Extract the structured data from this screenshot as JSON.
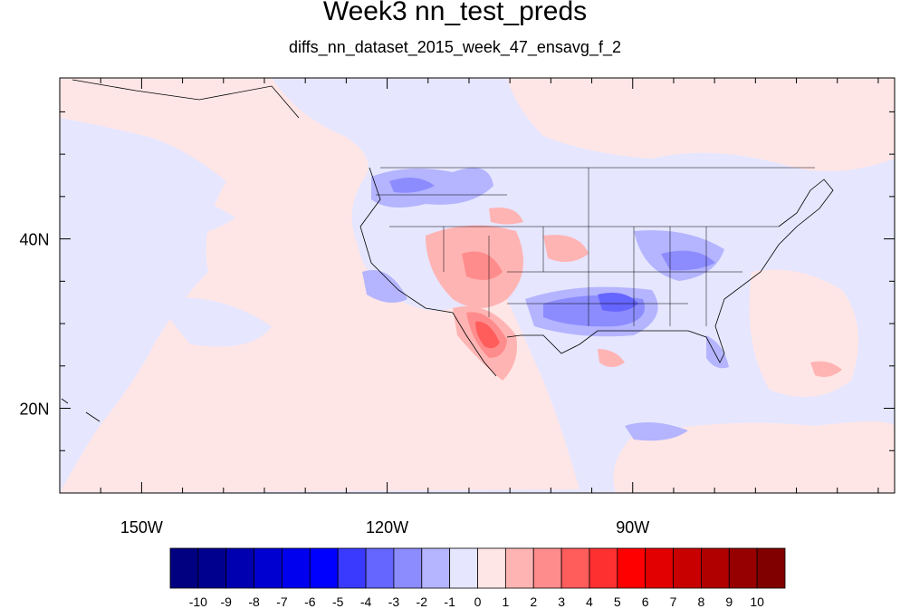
{
  "title": "Week3 nn_test_preds",
  "subtitle": "diffs_nn_dataset_2015_week_47_ensavg_f_2",
  "chart_data": {
    "type": "heatmap",
    "title": "Week3 nn_test_preds",
    "subtitle": "diffs_nn_dataset_2015_week_47_ensavg_f_2",
    "projection": "cylindrical equidistant",
    "lon_range": [
      -160,
      -58
    ],
    "lat_range": [
      10,
      59
    ],
    "x_ticks": [
      {
        "lon": -150,
        "label": "150W"
      },
      {
        "lon": -120,
        "label": "120W"
      },
      {
        "lon": -90,
        "label": "90W"
      }
    ],
    "y_ticks": [
      {
        "lat": 40,
        "label": "40N"
      },
      {
        "lat": 20,
        "label": "20N"
      }
    ],
    "colorbar": {
      "labels": [
        "-10",
        "-9",
        "-8",
        "-7",
        "-6",
        "-5",
        "-4",
        "-3",
        "-2",
        "-1",
        "0",
        "1",
        "2",
        "3",
        "4",
        "5",
        "6",
        "7",
        "8",
        "9",
        "10"
      ],
      "colors": [
        "#000080",
        "#00008e",
        "#0000b0",
        "#0000d0",
        "#0000ee",
        "#0000ff",
        "#3a3aff",
        "#6565ff",
        "#8c8cff",
        "#b4b4ff",
        "#e6e6ff",
        "#ffe6e6",
        "#ffb4b4",
        "#ff8c8c",
        "#ff5c5c",
        "#ff3030",
        "#ff0000",
        "#e20000",
        "#c80000",
        "#b00000",
        "#960000",
        "#800000"
      ]
    },
    "background_level": {
      "ocean": "-1 to 0",
      "color": "#e6e6ff"
    },
    "features": [
      {
        "region": "Arizona / New Mexico / Colorado",
        "value_range": [
          1,
          3
        ]
      },
      {
        "region": "Gulf of California / northwest Mexico",
        "value_range": [
          3,
          5
        ]
      },
      {
        "region": "Central Kansas",
        "value_range": [
          1,
          2
        ]
      },
      {
        "region": "Southeast Texas / Louisiana / Arkansas",
        "value_range": [
          -4,
          -2
        ]
      },
      {
        "region": "Ohio Valley",
        "value_range": [
          -3,
          -1
        ]
      },
      {
        "region": "Pacific Northwest / Idaho / Montana",
        "value_range": [
          -2,
          -1
        ]
      },
      {
        "region": "Florida",
        "value_range": [
          -2,
          -1
        ]
      },
      {
        "region": "Atlantic east of Florida",
        "value_range": [
          1,
          2
        ]
      },
      {
        "region": "Caribbean",
        "value_range": [
          -2,
          -1
        ]
      }
    ]
  }
}
